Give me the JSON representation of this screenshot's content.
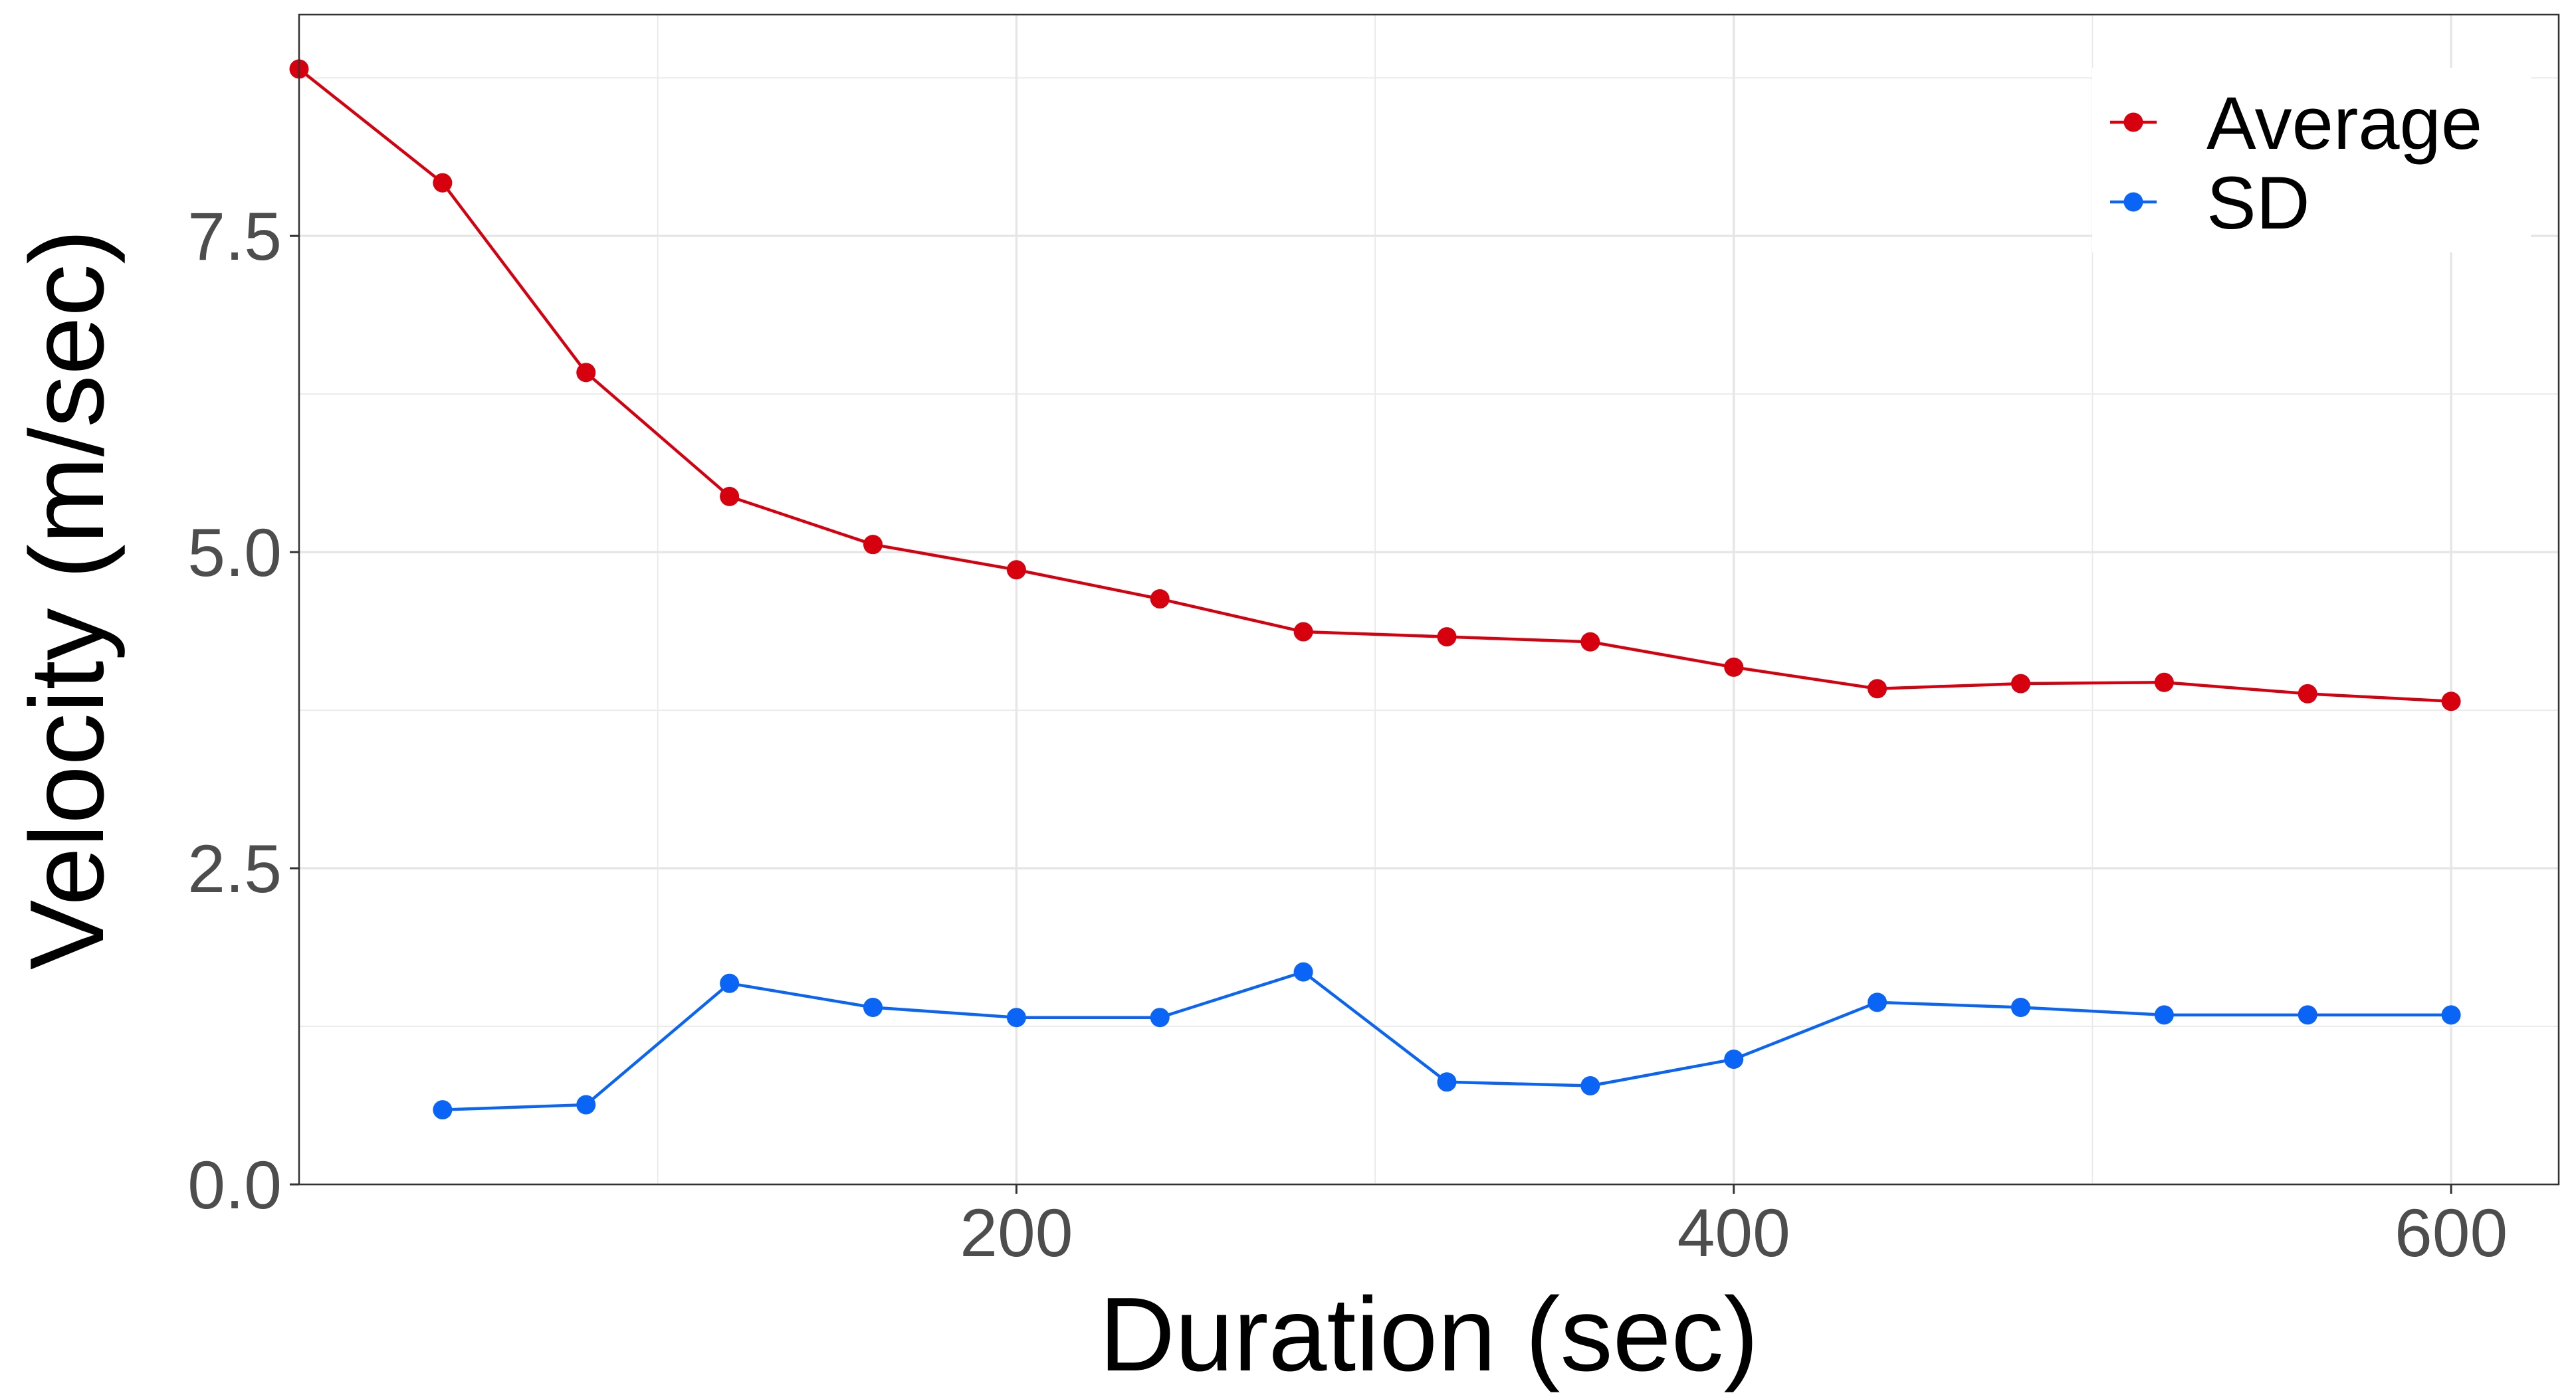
{
  "chart_data": {
    "type": "line",
    "title": "",
    "xlabel": "Duration (sec)",
    "ylabel": "Velocity (m/sec)",
    "xlim": [
      0,
      630
    ],
    "ylim": [
      0,
      9.25
    ],
    "x_ticks": [
      200,
      400,
      600
    ],
    "x_tick_labels": [
      "200",
      "400",
      "600"
    ],
    "y_ticks": [
      0,
      2.5,
      5,
      7.5
    ],
    "y_tick_labels": [
      "0.0",
      "2.5",
      "5.0",
      "7.5"
    ],
    "grid": true,
    "legend_position": "top-right",
    "series": [
      {
        "name": "Average",
        "color": "#d7000f",
        "x": [
          0,
          40,
          80,
          120,
          160,
          200,
          240,
          280,
          320,
          360,
          400,
          440,
          480,
          520,
          560,
          600
        ],
        "y": [
          8.82,
          7.92,
          6.42,
          5.44,
          5.06,
          4.86,
          4.63,
          4.37,
          4.33,
          4.29,
          4.09,
          3.92,
          3.96,
          3.97,
          3.88,
          3.82
        ]
      },
      {
        "name": "SD",
        "color": "#0a64f5",
        "x": [
          40,
          80,
          120,
          160,
          200,
          240,
          280,
          320,
          360,
          400,
          440,
          480,
          520,
          560,
          600
        ],
        "y": [
          0.59,
          0.63,
          1.59,
          1.4,
          1.32,
          1.32,
          1.68,
          0.81,
          0.78,
          0.99,
          1.44,
          1.4,
          1.34,
          1.34,
          1.34
        ]
      }
    ]
  }
}
